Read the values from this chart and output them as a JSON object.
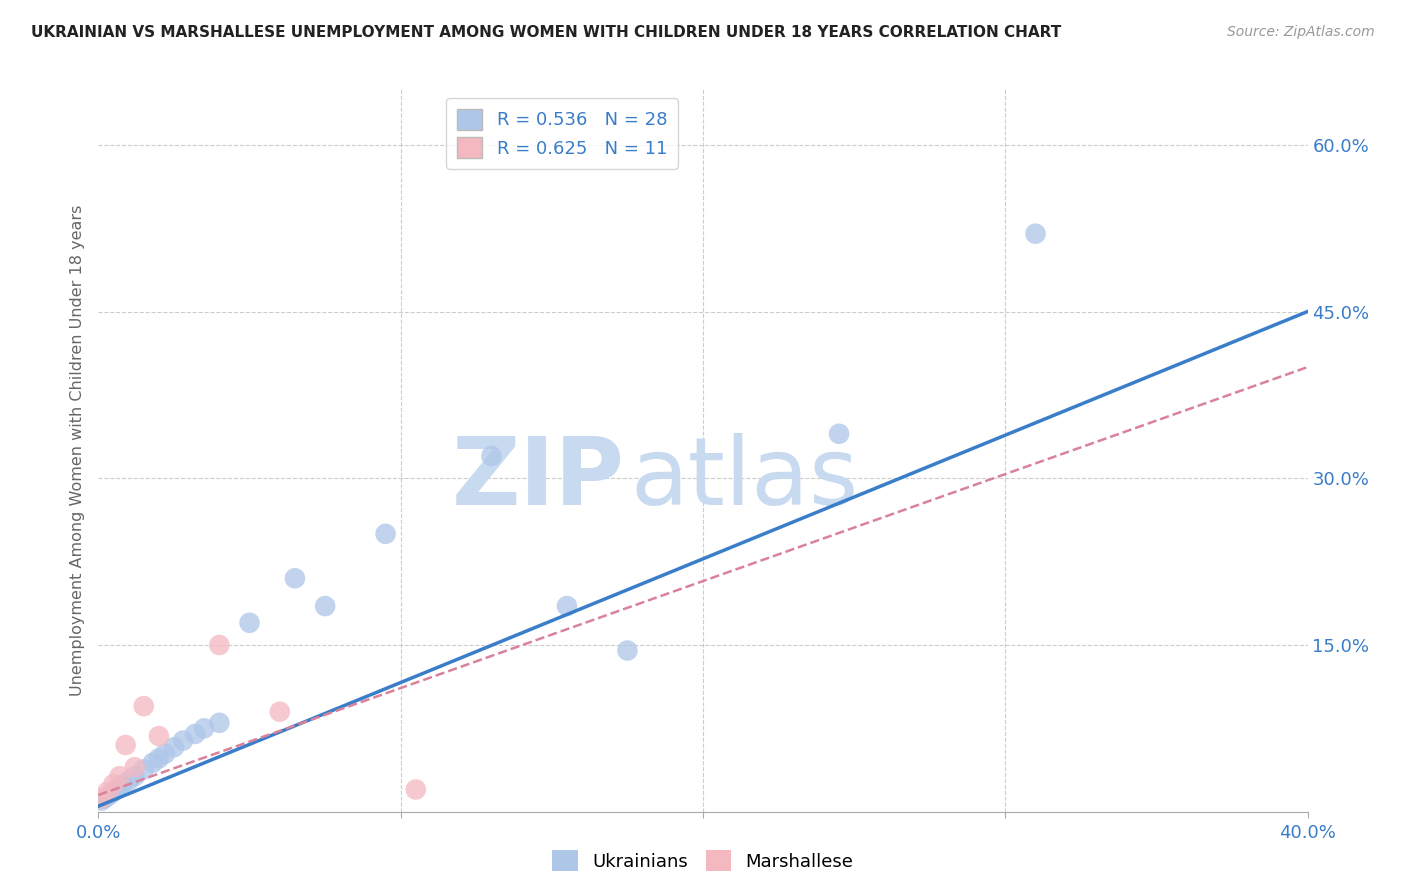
{
  "title": "UKRAINIAN VS MARSHALLESE UNEMPLOYMENT AMONG WOMEN WITH CHILDREN UNDER 18 YEARS CORRELATION CHART",
  "source": "Source: ZipAtlas.com",
  "ylabel": "Unemployment Among Women with Children Under 18 years",
  "xlim": [
    0.0,
    0.4
  ],
  "ylim": [
    0.0,
    0.65
  ],
  "xticks": [
    0.0,
    0.1,
    0.2,
    0.3,
    0.4
  ],
  "xtick_labels": [
    "0.0%",
    "",
    "",
    "",
    "40.0%"
  ],
  "ytick_positions_right": [
    0.0,
    0.15,
    0.3,
    0.45,
    0.6
  ],
  "ytick_labels_right": [
    "",
    "15.0%",
    "30.0%",
    "45.0%",
    "60.0%"
  ],
  "grid_color": "#cccccc",
  "background_color": "#ffffff",
  "ukrainian_color": "#aec6e8",
  "marshallese_color": "#f4b8c1",
  "ukrainian_line_color": "#3a7dc9",
  "marshallese_line_color": "#d9829a",
  "R_ukrainian": 0.536,
  "N_ukrainian": 28,
  "R_marshallese": 0.625,
  "N_marshallese": 11,
  "legend_label_ukrainian": "Ukrainians",
  "legend_label_marshallese": "Marshallese",
  "ukrainian_x": [
    0.001,
    0.002,
    0.003,
    0.004,
    0.005,
    0.006,
    0.007,
    0.008,
    0.01,
    0.012,
    0.015,
    0.018,
    0.02,
    0.022,
    0.025,
    0.028,
    0.032,
    0.035,
    0.04,
    0.05,
    0.065,
    0.075,
    0.095,
    0.13,
    0.155,
    0.175,
    0.245,
    0.31
  ],
  "ukrainian_y": [
    0.01,
    0.012,
    0.014,
    0.016,
    0.018,
    0.02,
    0.022,
    0.024,
    0.028,
    0.032,
    0.038,
    0.044,
    0.048,
    0.052,
    0.058,
    0.064,
    0.07,
    0.075,
    0.08,
    0.17,
    0.21,
    0.185,
    0.25,
    0.32,
    0.185,
    0.145,
    0.34,
    0.52
  ],
  "marshallese_x": [
    0.001,
    0.003,
    0.005,
    0.007,
    0.009,
    0.012,
    0.015,
    0.02,
    0.04,
    0.06,
    0.105
  ],
  "marshallese_y": [
    0.012,
    0.018,
    0.025,
    0.032,
    0.06,
    0.04,
    0.095,
    0.068,
    0.15,
    0.09,
    0.02
  ],
  "u_line_x0": 0.0,
  "u_line_y0": 0.005,
  "u_line_x1": 0.4,
  "u_line_y1": 0.45,
  "m_line_x0": 0.0,
  "m_line_y0": 0.015,
  "m_line_x1": 0.4,
  "m_line_y1": 0.4
}
